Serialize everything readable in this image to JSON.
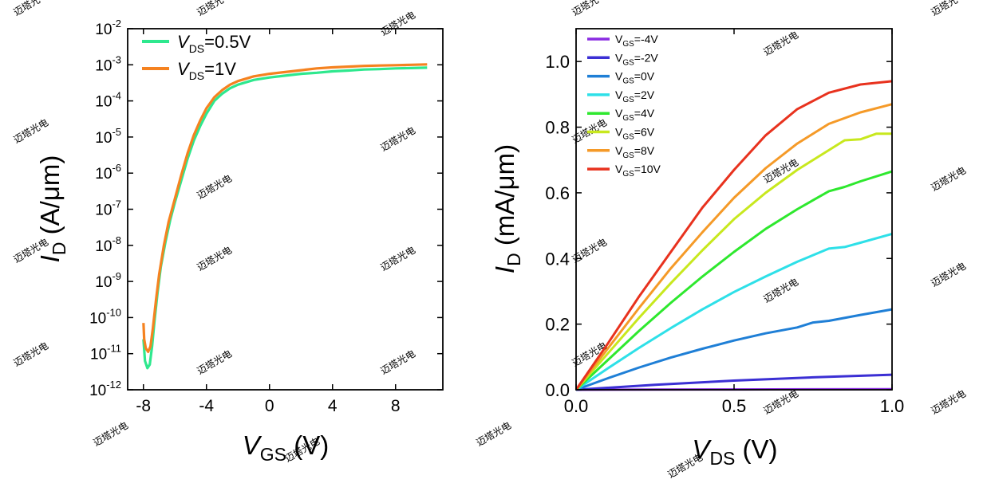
{
  "watermark": "迈塔光电",
  "chart_data": [
    {
      "type": "line",
      "scale": "log",
      "xlabel": {
        "main": "V",
        "sub": "GS",
        "unit": " (V)"
      },
      "ylabel": {
        "main": "I",
        "sub": "D",
        "unit": " (A/μm)"
      },
      "xlim": [
        -9,
        11
      ],
      "ylim_exp": [
        -12,
        -2
      ],
      "xticks": [
        -8,
        -4,
        0,
        4,
        8
      ],
      "yticks": [
        {
          "base": "10",
          "exp": "-12",
          "value": -12
        },
        {
          "base": "10",
          "exp": "-11",
          "value": -11
        },
        {
          "base": "10",
          "exp": "-10",
          "value": -10
        },
        {
          "base": "10",
          "exp": "-9",
          "value": -9
        },
        {
          "base": "10",
          "exp": "-8",
          "value": -8
        },
        {
          "base": "10",
          "exp": "-7",
          "value": -7
        },
        {
          "base": "10",
          "exp": "-6",
          "value": -6
        },
        {
          "base": "10",
          "exp": "-5",
          "value": -5
        },
        {
          "base": "10",
          "exp": "-4",
          "value": -4
        },
        {
          "base": "10",
          "exp": "-3",
          "value": -3
        },
        {
          "base": "10",
          "exp": "-2",
          "value": -2
        }
      ],
      "legend_position": "top-left",
      "series": [
        {
          "name": {
            "v": "V",
            "sub": "DS",
            "rest": "=0.5V"
          },
          "color": "#2ee88e",
          "points": [
            [
              -8.0,
              -10.6
            ],
            [
              -7.9,
              -11.2
            ],
            [
              -7.75,
              -11.4
            ],
            [
              -7.6,
              -11.3
            ],
            [
              -7.45,
              -10.8
            ],
            [
              -7.3,
              -10.1
            ],
            [
              -7.1,
              -9.3
            ],
            [
              -6.9,
              -8.6
            ],
            [
              -6.6,
              -7.9
            ],
            [
              -6.3,
              -7.3
            ],
            [
              -6.0,
              -6.8
            ],
            [
              -5.6,
              -6.2
            ],
            [
              -5.2,
              -5.6
            ],
            [
              -4.8,
              -5.1
            ],
            [
              -4.4,
              -4.7
            ],
            [
              -4.0,
              -4.35
            ],
            [
              -3.5,
              -4.0
            ],
            [
              -3.0,
              -3.8
            ],
            [
              -2.5,
              -3.65
            ],
            [
              -2.0,
              -3.55
            ],
            [
              -1.0,
              -3.42
            ],
            [
              0.0,
              -3.35
            ],
            [
              1.0,
              -3.3
            ],
            [
              2.0,
              -3.25
            ],
            [
              3.0,
              -3.22
            ],
            [
              4.0,
              -3.18
            ],
            [
              5.0,
              -3.16
            ],
            [
              6.0,
              -3.13
            ],
            [
              7.0,
              -3.12
            ],
            [
              8.0,
              -3.1
            ],
            [
              9.0,
              -3.09
            ],
            [
              10.0,
              -3.08
            ]
          ]
        },
        {
          "name": {
            "v": "V",
            "sub": "DS",
            "rest": "=1V"
          },
          "color": "#f58220",
          "points": [
            [
              -8.0,
              -10.15
            ],
            [
              -7.95,
              -10.6
            ],
            [
              -7.85,
              -10.85
            ],
            [
              -7.7,
              -10.95
            ],
            [
              -7.55,
              -10.8
            ],
            [
              -7.4,
              -10.3
            ],
            [
              -7.2,
              -9.5
            ],
            [
              -7.0,
              -8.8
            ],
            [
              -6.7,
              -8.0
            ],
            [
              -6.4,
              -7.35
            ],
            [
              -6.0,
              -6.7
            ],
            [
              -5.6,
              -6.05
            ],
            [
              -5.2,
              -5.45
            ],
            [
              -4.8,
              -4.95
            ],
            [
              -4.4,
              -4.55
            ],
            [
              -4.0,
              -4.2
            ],
            [
              -3.5,
              -3.9
            ],
            [
              -3.0,
              -3.7
            ],
            [
              -2.5,
              -3.55
            ],
            [
              -2.0,
              -3.45
            ],
            [
              -1.0,
              -3.32
            ],
            [
              0.0,
              -3.25
            ],
            [
              1.0,
              -3.2
            ],
            [
              2.0,
              -3.15
            ],
            [
              3.0,
              -3.1
            ],
            [
              4.0,
              -3.07
            ],
            [
              5.0,
              -3.05
            ],
            [
              6.0,
              -3.03
            ],
            [
              7.0,
              -3.02
            ],
            [
              8.0,
              -3.01
            ],
            [
              9.0,
              -3.0
            ],
            [
              10.0,
              -2.99
            ]
          ]
        }
      ]
    },
    {
      "type": "line",
      "xlabel": {
        "main": "V",
        "sub": "DS",
        "unit": " (V)"
      },
      "ylabel": {
        "main": "I",
        "sub": "D",
        "unit": " (mA/μm)"
      },
      "xlim": [
        0,
        1.0
      ],
      "ylim": [
        0,
        1.1
      ],
      "xticks": [
        "0.0",
        "0.5",
        "1.0"
      ],
      "yticks": [
        "0.0",
        "0.2",
        "0.4",
        "0.6",
        "0.8",
        "1.0"
      ],
      "legend_position": "top-left",
      "series": [
        {
          "name": {
            "v": "V",
            "sub": "GS",
            "rest": "=-4V"
          },
          "color": "#8a2be2",
          "x": [
            0,
            0.25,
            0.5,
            0.75,
            1.0
          ],
          "y": [
            0,
            0.0005,
            0.001,
            0.0015,
            0.002
          ]
        },
        {
          "name": {
            "v": "V",
            "sub": "GS",
            "rest": "=-2V"
          },
          "color": "#3b2fd4",
          "x": [
            0,
            0.25,
            0.5,
            0.75,
            1.0
          ],
          "y": [
            0,
            0.015,
            0.028,
            0.038,
            0.046
          ]
        },
        {
          "name": {
            "v": "V",
            "sub": "GS",
            "rest": "=0V"
          },
          "color": "#1f7fd6",
          "x": [
            0,
            0.1,
            0.2,
            0.3,
            0.4,
            0.5,
            0.6,
            0.7,
            0.75,
            0.8,
            0.9,
            1.0
          ],
          "y": [
            0,
            0.035,
            0.068,
            0.098,
            0.125,
            0.15,
            0.172,
            0.19,
            0.205,
            0.21,
            0.228,
            0.245
          ]
        },
        {
          "name": {
            "v": "V",
            "sub": "GS",
            "rest": "=2V"
          },
          "color": "#2ee0e8",
          "x": [
            0,
            0.1,
            0.2,
            0.3,
            0.4,
            0.5,
            0.6,
            0.7,
            0.8,
            0.85,
            0.9,
            1.0
          ],
          "y": [
            0,
            0.065,
            0.128,
            0.188,
            0.245,
            0.298,
            0.345,
            0.39,
            0.43,
            0.435,
            0.448,
            0.475
          ]
        },
        {
          "name": {
            "v": "V",
            "sub": "GS",
            "rest": "=4V"
          },
          "color": "#2ee82e",
          "x": [
            0,
            0.1,
            0.2,
            0.3,
            0.4,
            0.5,
            0.6,
            0.7,
            0.8,
            0.85,
            0.9,
            1.0
          ],
          "y": [
            0,
            0.09,
            0.18,
            0.265,
            0.345,
            0.42,
            0.49,
            0.55,
            0.605,
            0.618,
            0.635,
            0.665
          ]
        },
        {
          "name": {
            "v": "V",
            "sub": "GS",
            "rest": "=6V"
          },
          "color": "#c8e81e",
          "x": [
            0,
            0.1,
            0.2,
            0.3,
            0.4,
            0.5,
            0.6,
            0.7,
            0.8,
            0.85,
            0.9,
            0.95,
            1.0
          ],
          "y": [
            0,
            0.11,
            0.22,
            0.325,
            0.425,
            0.52,
            0.6,
            0.67,
            0.73,
            0.76,
            0.763,
            0.78,
            0.78
          ]
        },
        {
          "name": {
            "v": "V",
            "sub": "GS",
            "rest": "=8V"
          },
          "color": "#f59a28",
          "x": [
            0,
            0.1,
            0.2,
            0.3,
            0.4,
            0.5,
            0.6,
            0.7,
            0.8,
            0.9,
            1.0
          ],
          "y": [
            0,
            0.125,
            0.25,
            0.37,
            0.48,
            0.585,
            0.675,
            0.75,
            0.81,
            0.845,
            0.87
          ]
        },
        {
          "name": {
            "v": "V",
            "sub": "GS",
            "rest": "=10V"
          },
          "color": "#e8321e",
          "x": [
            0,
            0.1,
            0.2,
            0.3,
            0.4,
            0.5,
            0.6,
            0.7,
            0.8,
            0.9,
            1.0
          ],
          "y": [
            0,
            0.14,
            0.285,
            0.42,
            0.555,
            0.67,
            0.775,
            0.855,
            0.905,
            0.93,
            0.94
          ]
        }
      ]
    }
  ]
}
